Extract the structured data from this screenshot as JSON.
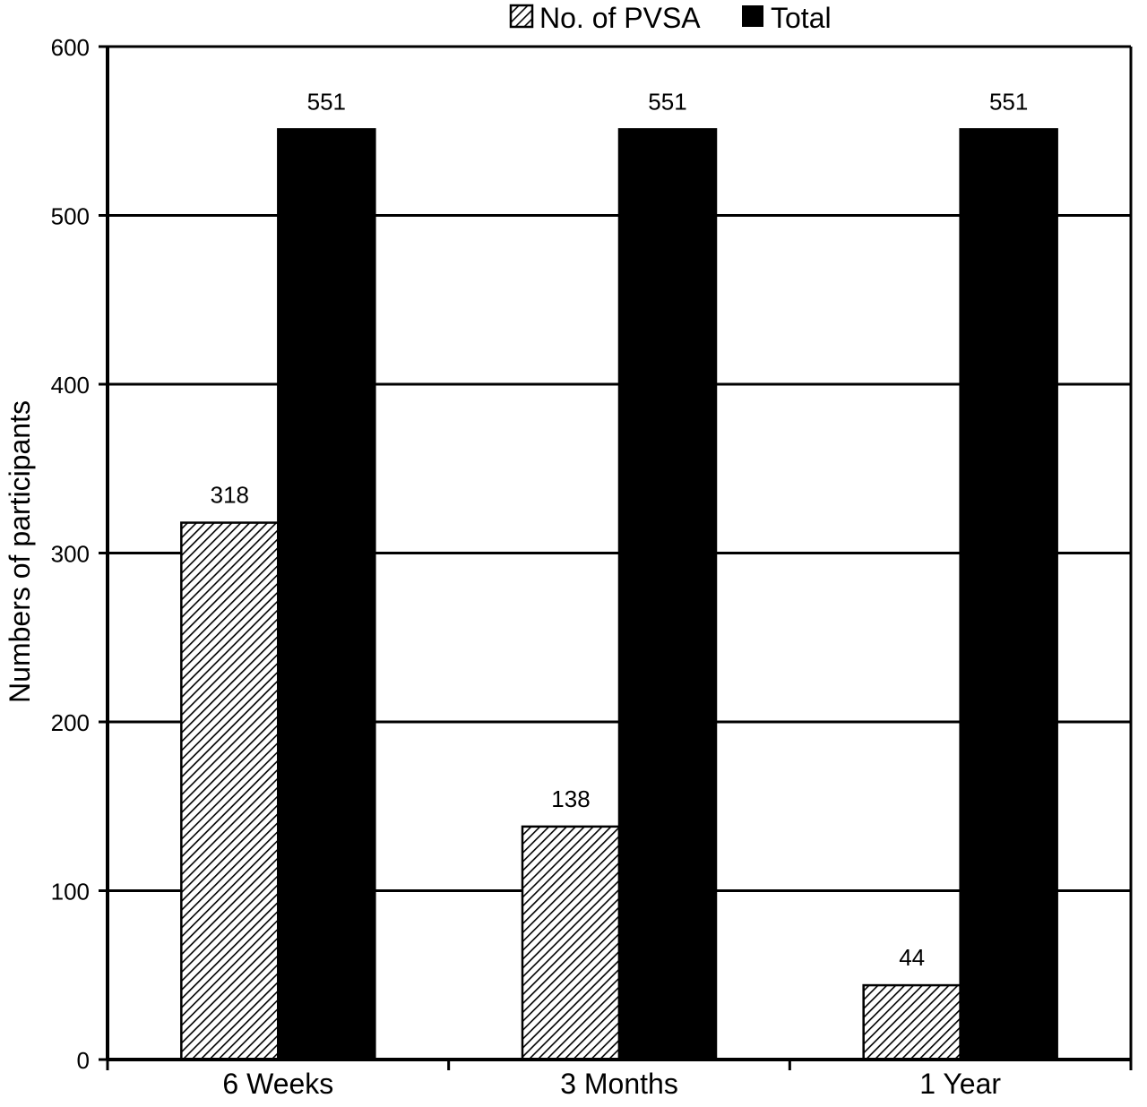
{
  "chart_data": {
    "type": "bar",
    "title": "",
    "xlabel": "",
    "ylabel": "Numbers of participants",
    "categories": [
      "6 Weeks",
      "3 Months",
      "1 Year"
    ],
    "series": [
      {
        "name": "No. of PVSA",
        "values": [
          318,
          138,
          44
        ],
        "pattern": "hatched",
        "color": "#ffffff"
      },
      {
        "name": "Total",
        "values": [
          551,
          551,
          551
        ],
        "pattern": "solid",
        "color": "#000000"
      }
    ],
    "ylim": [
      0,
      600
    ],
    "yticks": [
      "0",
      "100",
      "200",
      "300",
      "400",
      "500",
      "600"
    ],
    "data_labels": [
      [
        "318",
        "138",
        "44"
      ],
      [
        "551",
        "551",
        "551"
      ]
    ],
    "grid": true,
    "legend_position": "top-center"
  }
}
